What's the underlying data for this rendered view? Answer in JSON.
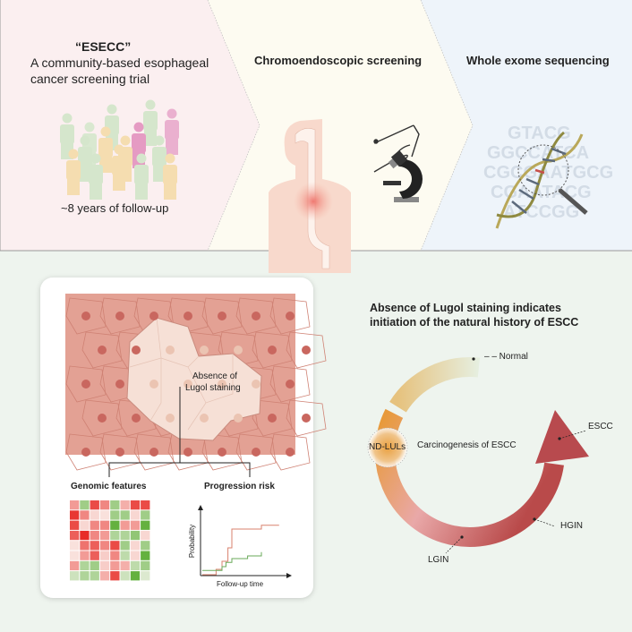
{
  "top": {
    "panel1": {
      "title": "“ESECC”",
      "line1": "A community-based esophageal",
      "line2": "cancer screening trial",
      "footer": "~8 years of follow-up"
    },
    "panel2": {
      "title": "Chromoendoscopic screening"
    },
    "panel3": {
      "title": "Whole exome sequencing",
      "dna_letters": [
        "GTACG",
        "GGCCATCA",
        "CGCGAATGCG",
        "CGAATACG",
        "ATCCGG"
      ]
    },
    "colors": {
      "panel1": "#fbeff0",
      "panel2": "#fdfbf1",
      "panel3": "#eef4fa"
    }
  },
  "bottom": {
    "cell_label_1": "Absence of",
    "cell_label_2": "Lugol staining",
    "genomic_title": "Genomic features",
    "risk_title": "Progression risk",
    "risk_ylabel": "Probability",
    "risk_xlabel": "Follow-up time",
    "heatmap": [
      [
        0.4,
        -0.5,
        0.8,
        0.5,
        -0.5,
        0.3,
        0.8,
        0.8
      ],
      [
        0.9,
        0.5,
        0.1,
        0.05,
        -0.5,
        -0.5,
        0.1,
        -0.5
      ],
      [
        0.8,
        0.1,
        0.5,
        0.5,
        -0.9,
        0.4,
        0.4,
        -0.9
      ],
      [
        0.7,
        0.95,
        0.5,
        0.4,
        -0.4,
        -0.4,
        -0.6,
        0.1
      ],
      [
        0.05,
        0.6,
        0.7,
        0.5,
        0.8,
        -0.5,
        0.1,
        -0.5
      ],
      [
        0.05,
        0.4,
        0.7,
        0.15,
        0.5,
        -0.3,
        0.1,
        -0.9
      ],
      [
        0.4,
        -0.4,
        -0.5,
        0.15,
        0.4,
        0.3,
        -0.3,
        -0.5
      ],
      [
        -0.2,
        -0.4,
        -0.4,
        0.3,
        0.8,
        -0.2,
        -0.9,
        -0.1
      ]
    ],
    "curves": [
      {
        "color": "#d9826e",
        "points": [
          [
            0,
            0
          ],
          [
            0.7,
            0
          ],
          [
            0.7,
            0.1
          ],
          [
            1.0,
            0.1
          ],
          [
            1.0,
            0.25
          ],
          [
            1.3,
            0.25
          ],
          [
            1.3,
            0.5
          ],
          [
            1.5,
            0.5
          ],
          [
            1.5,
            0.85
          ],
          [
            3,
            0.85
          ],
          [
            3,
            0.92
          ],
          [
            3.9,
            0.92
          ]
        ]
      },
      {
        "color": "#6aaa5a",
        "points": [
          [
            0,
            0.08
          ],
          [
            1.0,
            0.08
          ],
          [
            1.0,
            0.15
          ],
          [
            1.2,
            0.15
          ],
          [
            1.2,
            0.23
          ],
          [
            1.5,
            0.23
          ],
          [
            1.5,
            0.3
          ],
          [
            2.3,
            0.3
          ],
          [
            2.3,
            0.35
          ],
          [
            3,
            0.35
          ],
          [
            3,
            0.42
          ]
        ]
      }
    ],
    "right_title_1": "Absence of Lugol staining indicates",
    "right_title_2": "initiation of the natural history of ESCC",
    "center_label": "Carcinogenesis of ESCC",
    "stages": {
      "normal": "– – Normal",
      "ndlul": "ND-LULs",
      "lgin": "LGIN",
      "hgin": "HGIN",
      "escc": "ESCC"
    },
    "colors": {
      "background": "#eef4ee",
      "card": "#ffffff",
      "tissue": "#e3a194",
      "lesion": "#f6e0d6"
    }
  }
}
